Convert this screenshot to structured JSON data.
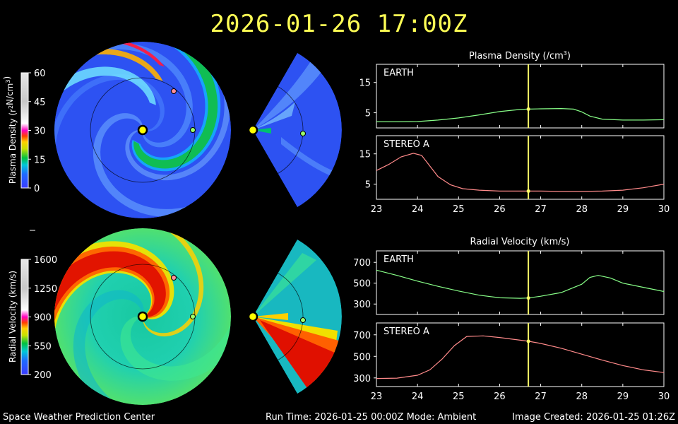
{
  "header": {
    "title": "2026-01-26 17:00Z"
  },
  "footer": {
    "left": "Space Weather Prediction Center",
    "center": "Run Time: 2026-01-25 00:00Z  Mode: Ambient",
    "right": "Image Created: 2026-01-25 01:26Z"
  },
  "colorbars": [
    {
      "label_text": "Plasma Density (r",
      "label_sup": "2",
      "label_mid": "N/cm",
      "label_sup2": "3",
      "label_end": ")",
      "ticks": [
        "60",
        "45",
        "30",
        "15",
        "0"
      ]
    },
    {
      "label_text": "Radial Velocity (km/s)",
      "ticks": [
        "1600",
        "1250",
        "900",
        "550",
        "200"
      ]
    }
  ],
  "colors": {
    "earth_marker": "#9dff6a",
    "stereo_marker": "#ff8f9a",
    "sun": "#ffff00",
    "time_line": "#ffff66",
    "earth_line": "#88ff88",
    "stereo_line": "#ff8a8a"
  },
  "chart_data": [
    {
      "type": "line",
      "title": "Plasma Density (/cm3)",
      "title_text": "Plasma Density (/cm",
      "title_sup": "3",
      "title_end": ")",
      "x_ticks": [
        "23",
        "24",
        "25",
        "26",
        "27",
        "28",
        "29",
        "30"
      ],
      "marker_x": 26.7,
      "panels": [
        {
          "name": "EARTH",
          "ylim": [
            0,
            21
          ],
          "yticks": [
            5,
            15
          ],
          "series_color": "earth",
          "x": [
            23,
            23.5,
            24,
            24.5,
            25,
            25.5,
            26,
            26.5,
            26.7,
            27,
            27.5,
            27.8,
            28,
            28.2,
            28.5,
            29,
            29.5,
            30
          ],
          "y": [
            2.0,
            2.0,
            2.1,
            2.6,
            3.3,
            4.3,
            5.4,
            6.1,
            6.2,
            6.3,
            6.4,
            6.2,
            5.3,
            3.9,
            2.9,
            2.6,
            2.6,
            2.7
          ]
        },
        {
          "name": "STEREO A",
          "ylim": [
            0,
            21
          ],
          "yticks": [
            5,
            15
          ],
          "series_color": "stereo",
          "x": [
            23,
            23.3,
            23.6,
            23.9,
            24.1,
            24.3,
            24.5,
            24.8,
            25.1,
            25.5,
            26,
            26.7,
            27,
            27.5,
            28,
            28.5,
            29,
            29.5,
            30
          ],
          "y": [
            9.5,
            11.5,
            14.0,
            15.2,
            14.5,
            11.0,
            7.5,
            4.8,
            3.5,
            3.0,
            2.7,
            2.7,
            2.7,
            2.6,
            2.6,
            2.7,
            3.0,
            3.8,
            5.0
          ]
        }
      ]
    },
    {
      "type": "line",
      "title": "Radial Velocity (km/s)",
      "title_text": "Radial Velocity (km/s)",
      "x_ticks": [
        "23",
        "24",
        "25",
        "26",
        "27",
        "28",
        "29",
        "30"
      ],
      "marker_x": 26.7,
      "panels": [
        {
          "name": "EARTH",
          "ylim": [
            200,
            810
          ],
          "yticks": [
            300,
            500,
            700
          ],
          "series_color": "earth",
          "x": [
            23,
            23.5,
            24,
            24.5,
            25,
            25.5,
            26,
            26.5,
            26.7,
            27,
            27.5,
            28,
            28.2,
            28.4,
            28.7,
            29,
            29.5,
            30
          ],
          "y": [
            625,
            575,
            520,
            470,
            425,
            385,
            360,
            355,
            358,
            375,
            410,
            490,
            555,
            575,
            550,
            500,
            460,
            420
          ]
        },
        {
          "name": "STEREO A",
          "ylim": [
            220,
            810
          ],
          "yticks": [
            300,
            500,
            700
          ],
          "series_color": "stereo",
          "x": [
            23,
            23.5,
            24,
            24.3,
            24.6,
            24.9,
            25.2,
            25.6,
            26,
            26.4,
            26.7,
            27,
            27.5,
            28,
            28.5,
            29,
            29.5,
            30
          ],
          "y": [
            295,
            298,
            325,
            375,
            475,
            600,
            685,
            690,
            675,
            655,
            640,
            620,
            575,
            520,
            465,
            415,
            375,
            350
          ]
        }
      ]
    }
  ]
}
